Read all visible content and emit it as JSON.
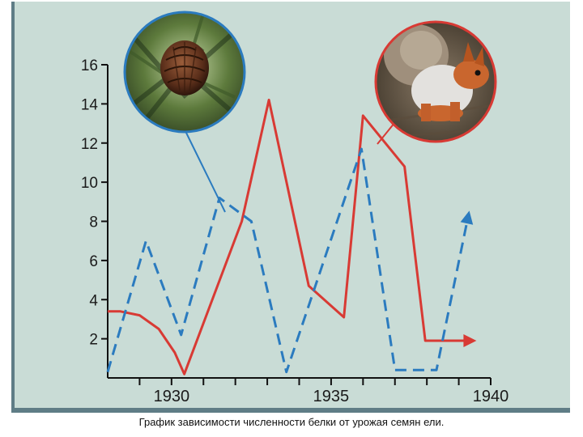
{
  "caption": "График зависимости численности белки от урожая семян  ели.",
  "colors": {
    "background": "#c9dcd6",
    "frame": "#5f7d86",
    "squirrel_series": "#d83a34",
    "spruce_seeds_series": "#2b7bbf"
  },
  "icons": {
    "left_circle": "spruce-cone-photo",
    "right_circle": "red-squirrel-photo"
  },
  "chart_data": {
    "type": "line",
    "title": "",
    "xlabel": "",
    "ylabel": "",
    "xlim": [
      1928,
      1940
    ],
    "ylim": [
      0,
      16
    ],
    "x_ticks": [
      1930,
      1935,
      1940
    ],
    "x_minor_ticks": [
      1929,
      1930,
      1931,
      1932,
      1933,
      1934,
      1935,
      1936,
      1937,
      1938,
      1939,
      1940
    ],
    "y_ticks": [
      2,
      4,
      6,
      8,
      10,
      12,
      14,
      16
    ],
    "grid": false,
    "series": [
      {
        "style": "solid",
        "color": "#d83a34",
        "icon": "red-squirrel-photo",
        "points": [
          [
            1928.0,
            3.4
          ],
          [
            1928.4,
            3.4
          ],
          [
            1929.0,
            3.2
          ],
          [
            1929.6,
            2.5
          ],
          [
            1930.1,
            1.3
          ],
          [
            1930.4,
            0.2
          ],
          [
            1932.2,
            8.0
          ],
          [
            1933.05,
            14.2
          ],
          [
            1934.3,
            4.7
          ],
          [
            1935.4,
            3.1
          ],
          [
            1936.0,
            13.4
          ],
          [
            1937.3,
            10.8
          ],
          [
            1937.95,
            1.9
          ],
          [
            1938.7,
            1.9
          ],
          [
            1939.4,
            1.9
          ]
        ],
        "arrow_end": true
      },
      {
        "style": "dashed",
        "color": "#2b7bbf",
        "icon": "spruce-cone-photo",
        "points": [
          [
            1928.0,
            0.3
          ],
          [
            1929.2,
            7.0
          ],
          [
            1930.3,
            2.2
          ],
          [
            1931.5,
            9.2
          ],
          [
            1932.5,
            8.0
          ],
          [
            1933.6,
            0.3
          ],
          [
            1935.95,
            11.7
          ],
          [
            1937.0,
            0.4
          ],
          [
            1938.3,
            0.4
          ],
          [
            1939.3,
            8.3
          ]
        ],
        "arrow_end": true
      }
    ]
  }
}
